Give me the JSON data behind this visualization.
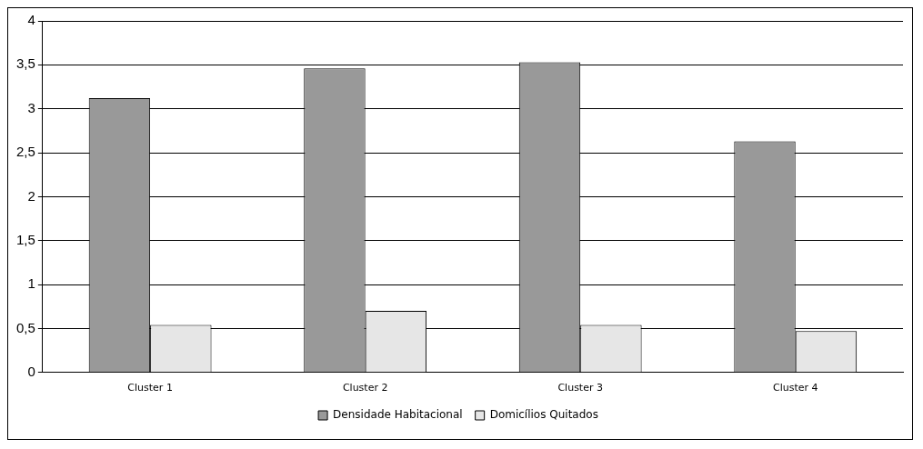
{
  "chart_data": {
    "type": "bar",
    "categories": [
      "Cluster 1",
      "Cluster 2",
      "Cluster 3",
      "Cluster 4"
    ],
    "series": [
      {
        "name": "Densidade Habitacional",
        "color": "#999999",
        "values": [
          3.12,
          3.46,
          3.53,
          2.63
        ]
      },
      {
        "name": "Domicílios Quitados",
        "color": "#e6e6e6",
        "values": [
          0.54,
          0.7,
          0.54,
          0.47
        ]
      }
    ],
    "ylim": [
      0,
      4
    ],
    "yticks": [
      0,
      {
        "value": 0.5,
        "label": "0,5"
      },
      1,
      {
        "value": 1.5,
        "label": "1,5"
      },
      2,
      {
        "value": 2.5,
        "label": "2,5"
      },
      3,
      {
        "value": 3.5,
        "label": "3,5"
      },
      4
    ],
    "grid": "y",
    "legend": "bottom"
  }
}
